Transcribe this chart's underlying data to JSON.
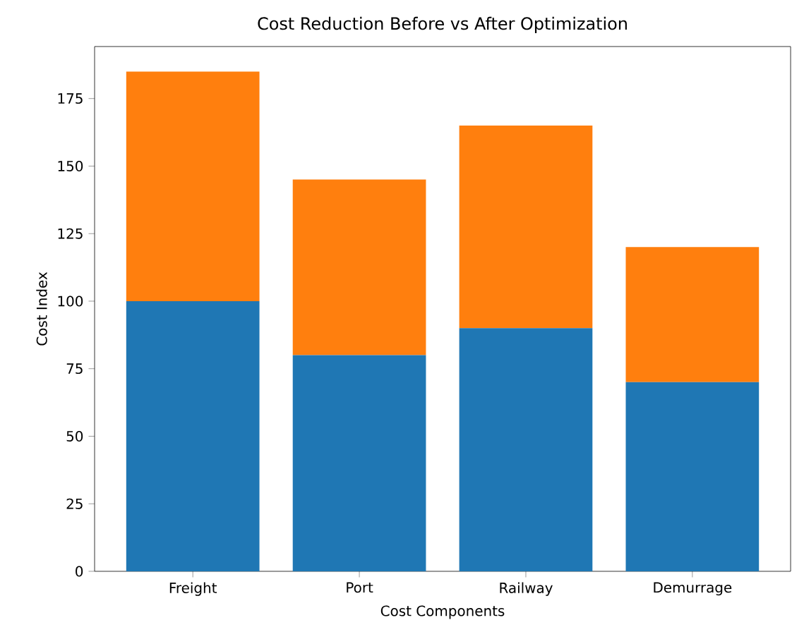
{
  "chart_data": {
    "type": "bar",
    "title": "Cost Reduction Before vs After Optimization",
    "xlabel": "Cost Components",
    "ylabel": "Cost Index",
    "categories": [
      "Freight",
      "Port",
      "Railway",
      "Demurrage"
    ],
    "stacked": true,
    "series": [
      {
        "color": "#1f77b4",
        "values": [
          100,
          80,
          90,
          70
        ]
      },
      {
        "color": "#ff7f0e",
        "values": [
          85,
          65,
          75,
          50
        ]
      }
    ],
    "ylim": [
      0,
      194.25
    ],
    "yticks": [
      0,
      25,
      50,
      75,
      100,
      125,
      150,
      175
    ]
  }
}
